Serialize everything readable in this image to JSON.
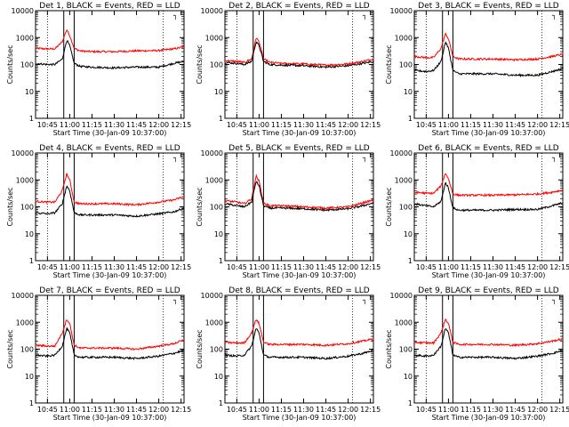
{
  "chart_data": {
    "type": "line",
    "yscale": "log",
    "ylim": [
      1,
      10000
    ],
    "xlim": [
      "10:37",
      "12:17"
    ],
    "ylabel": "Counts/sec",
    "xlabel": "Start Time (30-Jan-09 10:37:00)",
    "xticks": [
      "10:45",
      "11:00",
      "11:15",
      "11:30",
      "11:45",
      "12:00",
      "12:15"
    ],
    "yticks": [
      "1",
      "10",
      "100",
      "1000",
      "10000"
    ],
    "grid": false,
    "series_colors": {
      "events": "#000000",
      "lld": "#ff0000"
    },
    "dotted_vertical_lines": [
      "10:45",
      "12:03"
    ],
    "solid_vertical_lines": [
      "10:56",
      "11:03"
    ],
    "corner_marker": "┐",
    "panels": [
      {
        "title": "Det 1, BLACK = Events, RED = LLD",
        "times": [
          "10:37",
          "10:45",
          "10:50",
          "10:55",
          "10:58",
          "11:00",
          "11:03",
          "11:07",
          "11:15",
          "11:30",
          "11:45",
          "12:00",
          "12:10",
          "12:17"
        ],
        "events": [
          110,
          100,
          100,
          160,
          800,
          500,
          110,
          85,
          80,
          75,
          80,
          80,
          110,
          130
        ],
        "lld": [
          400,
          380,
          380,
          700,
          2000,
          1200,
          400,
          320,
          300,
          300,
          320,
          330,
          380,
          450
        ]
      },
      {
        "title": "Det 2, BLACK = Events, RED = LLD",
        "times": [
          "10:37",
          "10:45",
          "10:50",
          "10:55",
          "10:58",
          "11:00",
          "11:03",
          "11:07",
          "11:15",
          "11:30",
          "11:45",
          "12:00",
          "12:10",
          "12:17"
        ],
        "events": [
          120,
          110,
          100,
          130,
          700,
          500,
          130,
          100,
          95,
          90,
          80,
          90,
          110,
          130
        ],
        "lld": [
          140,
          130,
          120,
          160,
          1000,
          700,
          160,
          120,
          110,
          105,
          95,
          105,
          130,
          160
        ]
      },
      {
        "title": "Det 3, BLACK = Events, RED = LLD",
        "times": [
          "10:37",
          "10:45",
          "10:50",
          "10:55",
          "10:58",
          "11:00",
          "11:03",
          "11:07",
          "11:15",
          "11:30",
          "11:45",
          "12:00",
          "12:10",
          "12:17"
        ],
        "events": [
          60,
          55,
          60,
          130,
          700,
          400,
          60,
          45,
          45,
          45,
          40,
          40,
          55,
          70
        ],
        "lld": [
          200,
          180,
          180,
          400,
          1400,
          900,
          200,
          160,
          160,
          160,
          150,
          160,
          200,
          240
        ]
      },
      {
        "title": "Det 4, BLACK = Events, RED = LLD",
        "times": [
          "10:37",
          "10:45",
          "10:50",
          "10:55",
          "10:58",
          "11:00",
          "11:03",
          "11:07",
          "11:15",
          "11:30",
          "11:45",
          "12:00",
          "12:10",
          "12:17"
        ],
        "events": [
          60,
          55,
          60,
          130,
          600,
          400,
          60,
          50,
          50,
          50,
          45,
          55,
          65,
          90
        ],
        "lld": [
          160,
          150,
          150,
          400,
          1700,
          1000,
          150,
          130,
          130,
          130,
          120,
          150,
          180,
          240
        ]
      },
      {
        "title": "Det 5, BLACK = Events, RED = LLD",
        "times": [
          "10:37",
          "10:45",
          "10:50",
          "10:55",
          "10:58",
          "11:00",
          "11:03",
          "11:07",
          "11:15",
          "11:30",
          "11:45",
          "12:00",
          "12:10",
          "12:17"
        ],
        "events": [
          130,
          110,
          100,
          150,
          900,
          600,
          110,
          90,
          90,
          85,
          75,
          85,
          110,
          140
        ],
        "lld": [
          170,
          150,
          130,
          200,
          1400,
          900,
          140,
          110,
          110,
          100,
          90,
          100,
          140,
          180
        ]
      },
      {
        "title": "Det 6, BLACK = Events, RED = LLD",
        "times": [
          "10:37",
          "10:45",
          "10:50",
          "10:55",
          "10:58",
          "11:00",
          "11:03",
          "11:07",
          "11:15",
          "11:30",
          "11:45",
          "12:00",
          "12:10",
          "12:17"
        ],
        "events": [
          130,
          110,
          100,
          160,
          800,
          500,
          90,
          75,
          75,
          75,
          80,
          80,
          110,
          140
        ],
        "lld": [
          350,
          320,
          320,
          600,
          1800,
          1100,
          300,
          270,
          270,
          270,
          280,
          300,
          350,
          420
        ]
      },
      {
        "title": "Det 7, BLACK = Events, RED = LLD",
        "times": [
          "10:37",
          "10:45",
          "10:50",
          "10:55",
          "10:58",
          "11:00",
          "11:03",
          "11:07",
          "11:15",
          "11:30",
          "11:45",
          "12:00",
          "12:10",
          "12:17"
        ],
        "events": [
          60,
          55,
          60,
          130,
          600,
          400,
          60,
          50,
          50,
          50,
          45,
          55,
          70,
          90
        ],
        "lld": [
          140,
          130,
          130,
          400,
          1300,
          900,
          140,
          110,
          110,
          110,
          100,
          130,
          160,
          220
        ]
      },
      {
        "title": "Det 8, BLACK = Events, RED = LLD",
        "times": [
          "10:37",
          "10:45",
          "10:50",
          "10:55",
          "10:58",
          "11:00",
          "11:03",
          "11:07",
          "11:15",
          "11:30",
          "11:45",
          "12:00",
          "12:10",
          "12:17"
        ],
        "events": [
          60,
          55,
          60,
          130,
          600,
          400,
          60,
          50,
          50,
          50,
          45,
          55,
          70,
          90
        ],
        "lld": [
          180,
          170,
          170,
          400,
          1300,
          900,
          180,
          150,
          150,
          150,
          140,
          160,
          200,
          240
        ]
      },
      {
        "title": "Det 9, BLACK = Events, RED = LLD",
        "times": [
          "10:37",
          "10:45",
          "10:50",
          "10:55",
          "10:58",
          "11:00",
          "11:03",
          "11:07",
          "11:15",
          "11:30",
          "11:45",
          "12:00",
          "12:10",
          "12:17"
        ],
        "events": [
          60,
          55,
          60,
          130,
          600,
          400,
          60,
          50,
          50,
          50,
          45,
          55,
          70,
          90
        ],
        "lld": [
          180,
          170,
          170,
          400,
          1300,
          900,
          180,
          150,
          150,
          150,
          140,
          160,
          200,
          240
        ]
      }
    ]
  }
}
